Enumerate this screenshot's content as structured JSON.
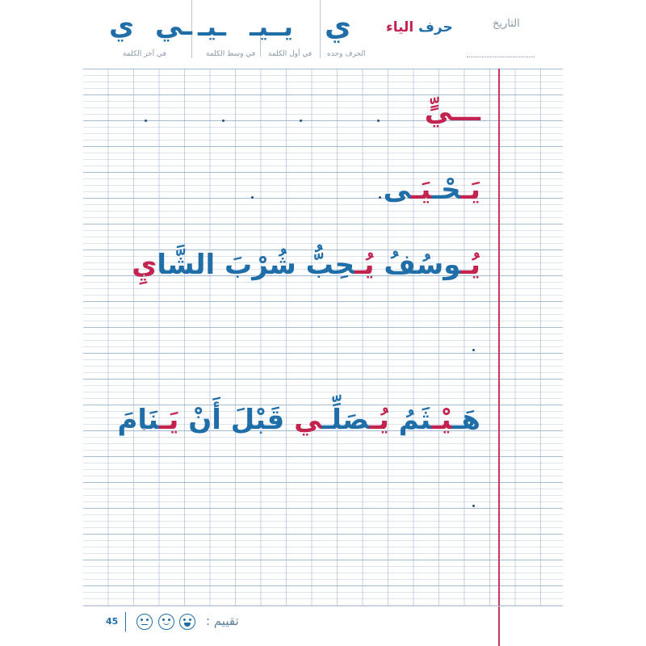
{
  "header": {
    "date_label": "التاريخ",
    "title_prefix": "حرف",
    "title_letter": "الياء",
    "forms": [
      {
        "letters": "ي",
        "caption": "الحرف وحده"
      },
      {
        "letters": "يـ",
        "caption": "في أول الكلمة"
      },
      {
        "letters": "ـيـ ـيـ",
        "caption": "في وسط الكلمة"
      },
      {
        "letters": "ـي ي",
        "caption": "في آخر الكلمة"
      }
    ]
  },
  "exercises": [
    {
      "red": "ـــيٍّ"
    },
    {
      "parts": [
        {
          "t": "يَـ",
          "c": "red"
        },
        {
          "t": "حْـ",
          "c": "blue"
        },
        {
          "t": "يَـ",
          "c": "red"
        },
        {
          "t": "ى",
          "c": "blue"
        }
      ]
    },
    {
      "parts": [
        {
          "t": "يُـ",
          "c": "red"
        },
        {
          "t": "وسُفُ ",
          "c": "blue"
        },
        {
          "t": "يُـ",
          "c": "red"
        },
        {
          "t": "حِبُّ شُرْبَ الشَّا",
          "c": "blue"
        },
        {
          "t": "يِ",
          "c": "red"
        }
      ]
    },
    {
      "parts": [
        {
          "t": "هَـ",
          "c": "blue"
        },
        {
          "t": "يْـ",
          "c": "red"
        },
        {
          "t": "ثَمُ ",
          "c": "blue"
        },
        {
          "t": "يُـ",
          "c": "red"
        },
        {
          "t": "صَلِّـ",
          "c": "blue"
        },
        {
          "t": "ي",
          "c": "red"
        },
        {
          "t": " قَبْلَ أَنْ ",
          "c": "blue"
        },
        {
          "t": "يَـ",
          "c": "red"
        },
        {
          "t": "نَامَ",
          "c": "blue"
        }
      ]
    }
  ],
  "footer": {
    "rating_label": "تقييم :",
    "page_number": "45",
    "faces": [
      "happy",
      "smile",
      "neutral"
    ]
  },
  "colors": {
    "blue": "#1f6ea8",
    "red": "#c3244f",
    "margin": "#c8345a"
  }
}
